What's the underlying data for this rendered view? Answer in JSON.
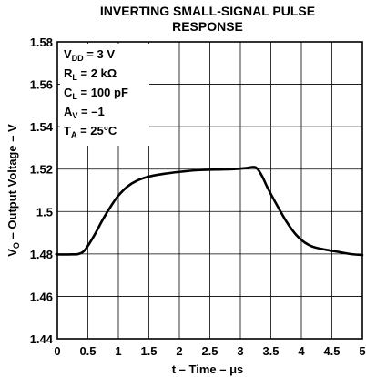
{
  "chart_data": {
    "type": "line",
    "title_line1": "INVERTING SMALL-SIGNAL PULSE",
    "title_line2": "RESPONSE",
    "xlabel": "t – Time – μs",
    "ylabel_main": "V",
    "ylabel_sub": "O",
    "ylabel_rest": " – Output Voltage – V",
    "xlim": [
      0,
      5
    ],
    "ylim": [
      1.44,
      1.58
    ],
    "x_ticks": [
      "0",
      "0.5",
      "1",
      "1.5",
      "2",
      "2.5",
      "3",
      "3.5",
      "4",
      "4.5",
      "5"
    ],
    "y_ticks": [
      "1.44",
      "1.46",
      "1.48",
      "1.5",
      "1.52",
      "1.54",
      "1.56",
      "1.58"
    ],
    "grid": true,
    "conditions": [
      {
        "main": "V",
        "sub": "DD",
        "rest": " = 3 V"
      },
      {
        "main": "R",
        "sub": "L",
        "rest": " = 2 kΩ"
      },
      {
        "main": "C",
        "sub": "L",
        "rest": " = 100 pF"
      },
      {
        "main": "A",
        "sub": "V",
        "rest": " = –1"
      },
      {
        "main": "T",
        "sub": "A",
        "rest": " = 25°C"
      }
    ],
    "series": [
      {
        "x": [
          -0.45,
          0.0,
          0.25,
          0.35,
          0.45,
          0.6,
          0.75,
          0.9,
          1.0,
          1.15,
          1.3,
          1.5,
          1.75,
          2.0,
          2.3,
          2.6,
          2.9,
          3.1,
          3.25,
          3.35,
          3.45,
          3.6,
          3.75,
          3.9,
          4.05,
          4.2,
          4.4,
          4.6,
          4.8,
          5.0
        ],
        "y": [
          1.48,
          1.4798,
          1.4798,
          1.48,
          1.4818,
          1.4885,
          1.4965,
          1.5035,
          1.5075,
          1.5118,
          1.5145,
          1.5165,
          1.5178,
          1.5187,
          1.5195,
          1.5198,
          1.52,
          1.5205,
          1.5208,
          1.517,
          1.511,
          1.503,
          1.4955,
          1.4895,
          1.4855,
          1.4833,
          1.482,
          1.481,
          1.48,
          1.4795
        ]
      }
    ]
  }
}
